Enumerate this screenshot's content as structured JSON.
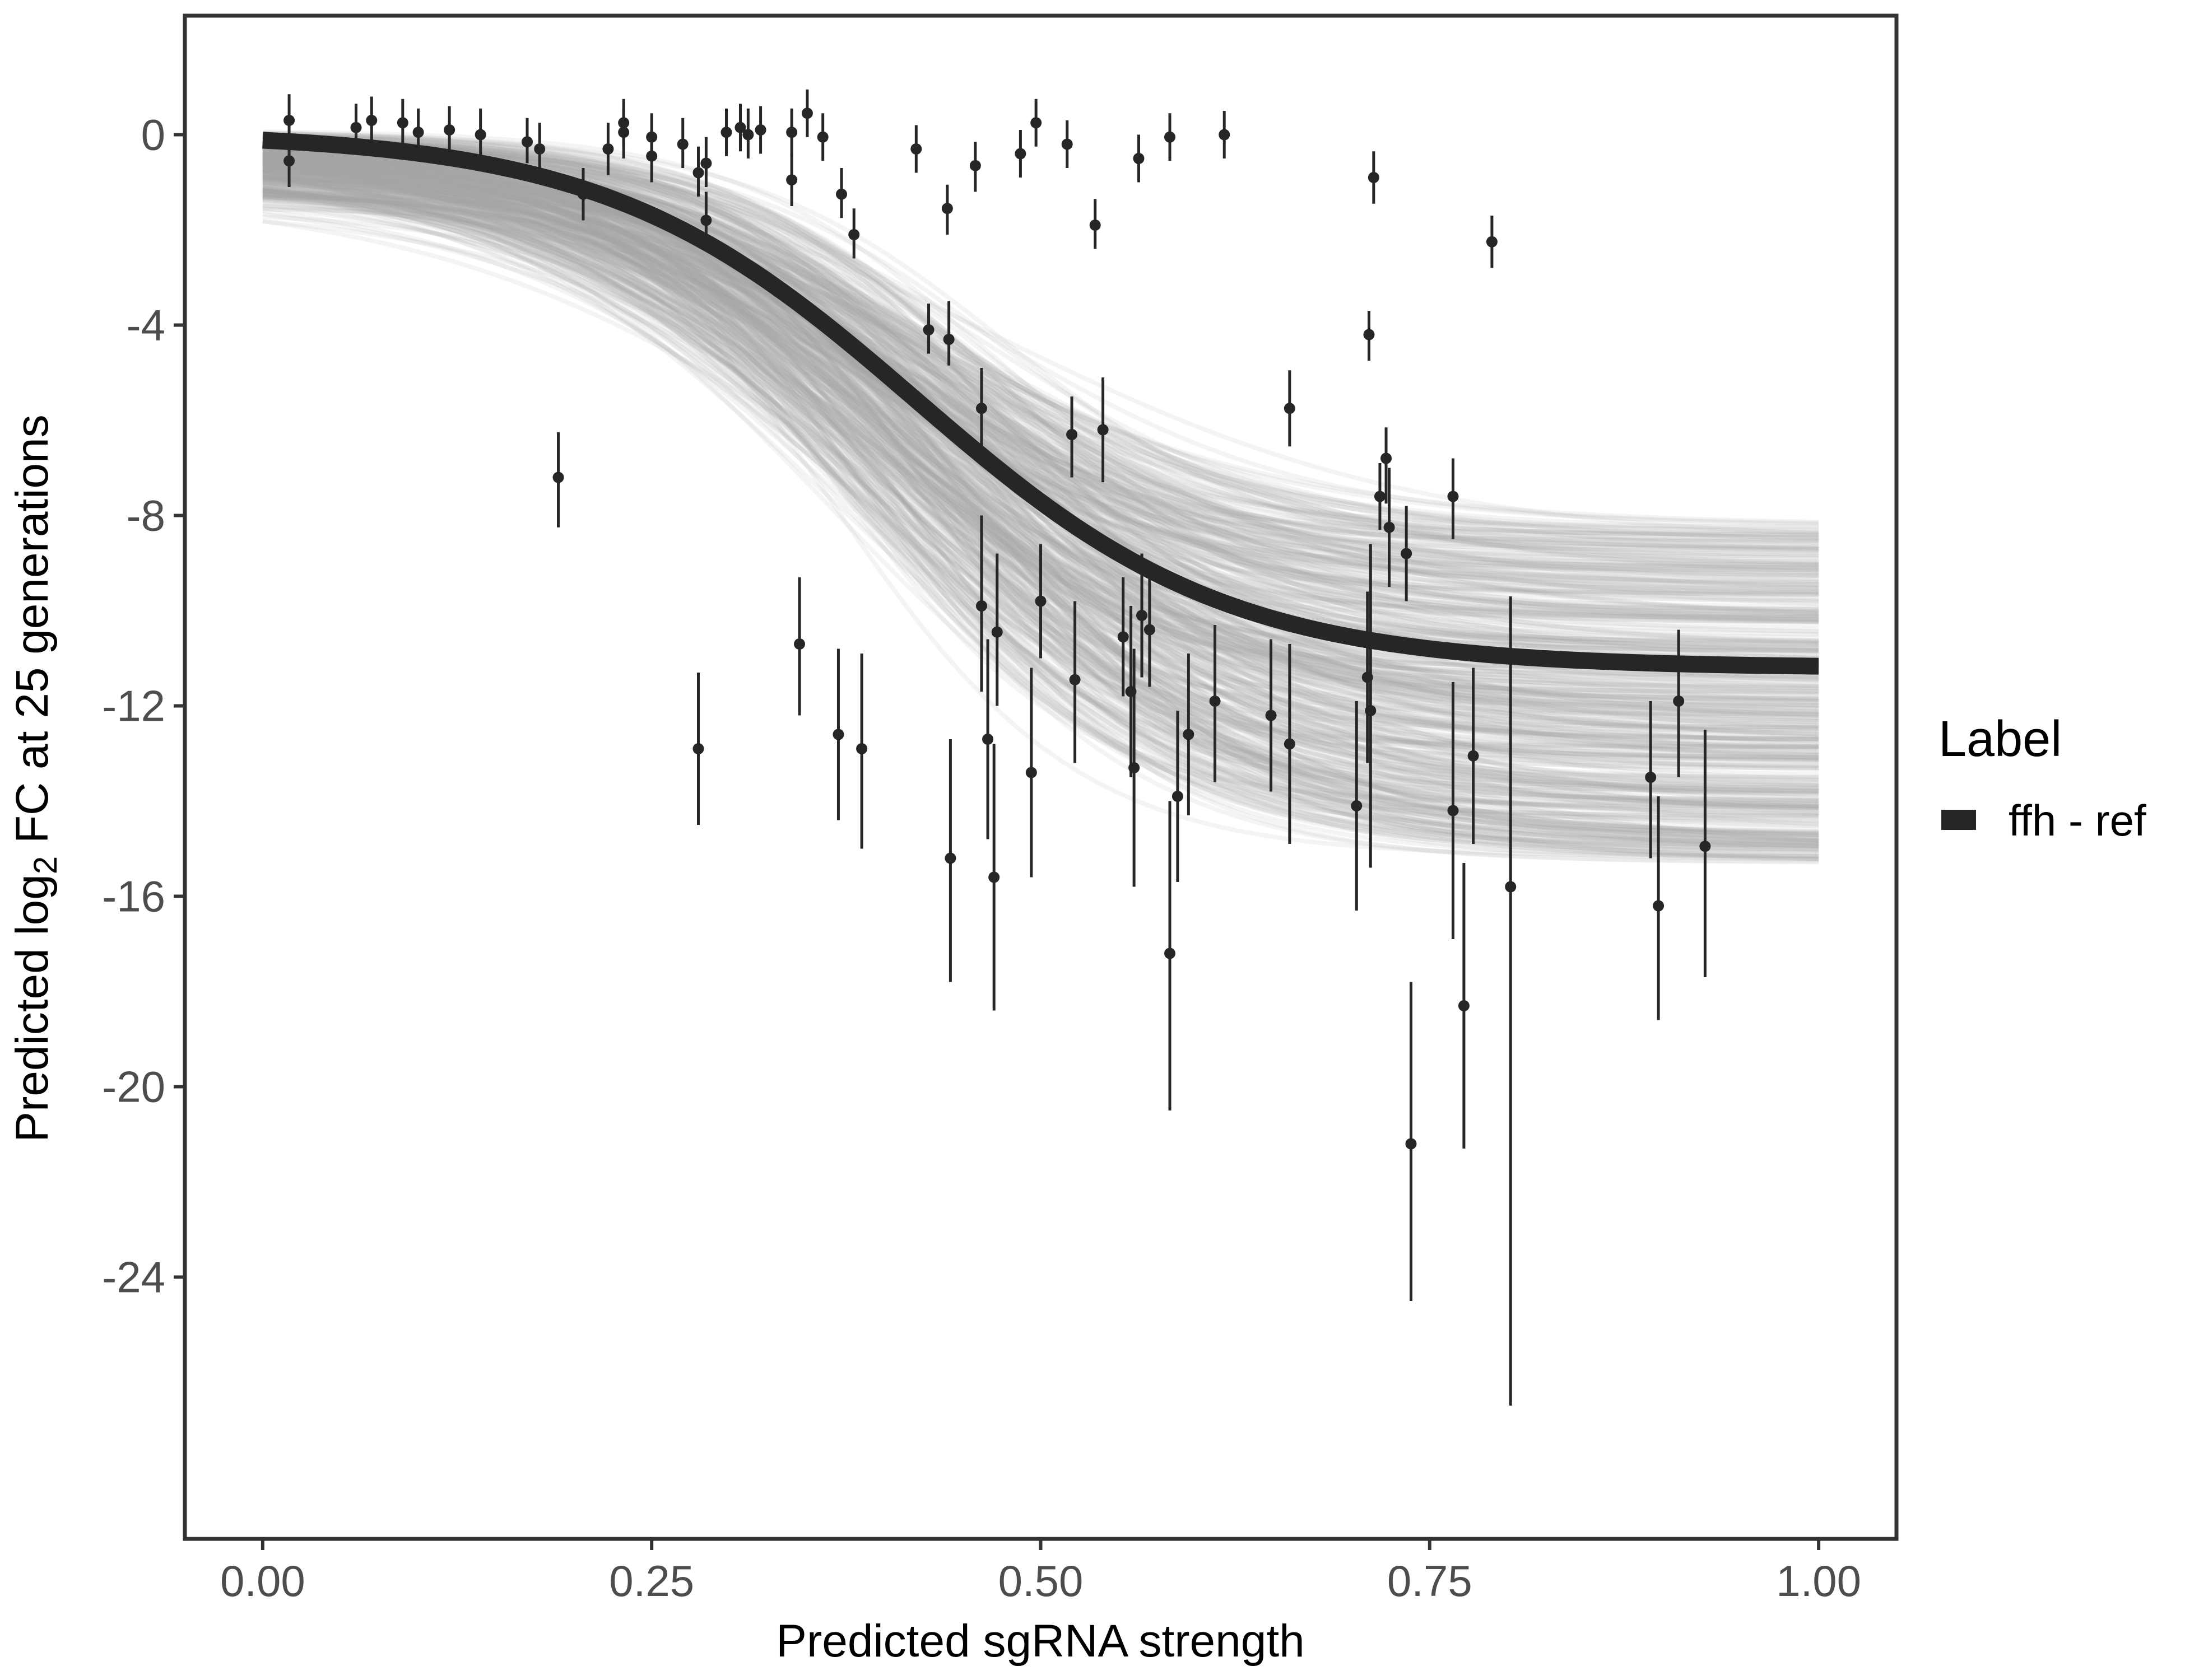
{
  "chart_data": {
    "type": "scatter",
    "xlabel": "Predicted sgRNA strength",
    "ylabel": {
      "prefix": "Predicted  log",
      "subscript": "2",
      "suffix": " FC at 25 generations"
    },
    "xlim": [
      -0.05,
      1.05
    ],
    "ylim": [
      -29.5,
      2.5
    ],
    "x_ticks": [
      0,
      0.25,
      0.5,
      0.75,
      1.0
    ],
    "x_tick_labels": [
      "0.00",
      "0.25",
      "0.50",
      "0.75",
      "1.00"
    ],
    "y_ticks": [
      0,
      -4,
      -8,
      -12,
      -16,
      -20,
      -24
    ],
    "y_tick_labels": [
      "0",
      "-4",
      "-8",
      "-12",
      "-16",
      "-20",
      "-24"
    ],
    "grid": false,
    "legend": {
      "title": "Label",
      "position": "right",
      "items": [
        {
          "label": "ffh - ref",
          "color": "#262626"
        }
      ]
    },
    "fit": {
      "name": "ffh - ref",
      "model": "sigmoid",
      "top": 0.05,
      "bottom": -11.2,
      "midpoint": 0.42,
      "steepness": 10,
      "color": "#262626"
    },
    "posterior_band": {
      "color": "#a6a6a6",
      "top_range": [
        -1.8,
        0.1
      ],
      "bottom_range": [
        -15.3,
        -8.2
      ]
    },
    "points": [
      {
        "x": 0.017,
        "y": 0.3,
        "lo": -0.3,
        "hi": 0.85
      },
      {
        "x": 0.017,
        "y": -0.55,
        "lo": -1.1,
        "hi": 0.0
      },
      {
        "x": 0.06,
        "y": 0.15,
        "lo": -0.35,
        "hi": 0.65
      },
      {
        "x": 0.07,
        "y": 0.3,
        "lo": -0.2,
        "hi": 0.8
      },
      {
        "x": 0.09,
        "y": 0.25,
        "lo": -0.25,
        "hi": 0.75
      },
      {
        "x": 0.1,
        "y": 0.05,
        "lo": -0.45,
        "hi": 0.55
      },
      {
        "x": 0.12,
        "y": 0.1,
        "lo": -0.4,
        "hi": 0.6
      },
      {
        "x": 0.14,
        "y": 0.0,
        "lo": -0.5,
        "hi": 0.55
      },
      {
        "x": 0.17,
        "y": -0.15,
        "lo": -0.6,
        "hi": 0.35
      },
      {
        "x": 0.178,
        "y": -0.3,
        "lo": -0.85,
        "hi": 0.25
      },
      {
        "x": 0.19,
        "y": -7.2,
        "lo": -8.25,
        "hi": -6.25
      },
      {
        "x": 0.206,
        "y": -1.25,
        "lo": -1.8,
        "hi": -0.7
      },
      {
        "x": 0.222,
        "y": -0.3,
        "lo": -0.85,
        "hi": 0.25
      },
      {
        "x": 0.232,
        "y": 0.05,
        "lo": -0.5,
        "hi": 0.55
      },
      {
        "x": 0.232,
        "y": 0.25,
        "lo": -0.25,
        "hi": 0.75
      },
      {
        "x": 0.25,
        "y": -0.45,
        "lo": -1.0,
        "hi": 0.1
      },
      {
        "x": 0.25,
        "y": -0.05,
        "lo": -0.55,
        "hi": 0.45
      },
      {
        "x": 0.27,
        "y": -0.2,
        "lo": -0.7,
        "hi": 0.35
      },
      {
        "x": 0.28,
        "y": -0.8,
        "lo": -1.3,
        "hi": -0.25
      },
      {
        "x": 0.28,
        "y": -12.9,
        "lo": -14.5,
        "hi": -11.3
      },
      {
        "x": 0.285,
        "y": -0.6,
        "lo": -1.1,
        "hi": -0.05
      },
      {
        "x": 0.285,
        "y": -1.8,
        "lo": -2.3,
        "hi": -1.2
      },
      {
        "x": 0.298,
        "y": 0.05,
        "lo": -0.45,
        "hi": 0.55
      },
      {
        "x": 0.307,
        "y": 0.15,
        "lo": -0.35,
        "hi": 0.65
      },
      {
        "x": 0.312,
        "y": 0.0,
        "lo": -0.5,
        "hi": 0.55
      },
      {
        "x": 0.32,
        "y": 0.1,
        "lo": -0.4,
        "hi": 0.6
      },
      {
        "x": 0.34,
        "y": 0.05,
        "lo": -0.45,
        "hi": 0.55
      },
      {
        "x": 0.34,
        "y": -0.95,
        "lo": -1.5,
        "hi": -0.4
      },
      {
        "x": 0.345,
        "y": -10.7,
        "lo": -12.2,
        "hi": -9.3
      },
      {
        "x": 0.35,
        "y": 0.45,
        "lo": -0.05,
        "hi": 0.95
      },
      {
        "x": 0.36,
        "y": -0.05,
        "lo": -0.55,
        "hi": 0.45
      },
      {
        "x": 0.37,
        "y": -12.6,
        "lo": -14.4,
        "hi": -10.8
      },
      {
        "x": 0.372,
        "y": -1.25,
        "lo": -1.75,
        "hi": -0.7
      },
      {
        "x": 0.38,
        "y": -2.1,
        "lo": -2.6,
        "hi": -1.55
      },
      {
        "x": 0.385,
        "y": -12.9,
        "lo": -15.0,
        "hi": -10.9
      },
      {
        "x": 0.42,
        "y": -0.3,
        "lo": -0.8,
        "hi": 0.2
      },
      {
        "x": 0.428,
        "y": -4.1,
        "lo": -4.6,
        "hi": -3.55
      },
      {
        "x": 0.44,
        "y": -1.55,
        "lo": -2.1,
        "hi": -1.05
      },
      {
        "x": 0.441,
        "y": -4.3,
        "lo": -4.85,
        "hi": -3.5
      },
      {
        "x": 0.442,
        "y": -15.2,
        "lo": -17.8,
        "hi": -12.7
      },
      {
        "x": 0.458,
        "y": -0.65,
        "lo": -1.2,
        "hi": -0.15
      },
      {
        "x": 0.462,
        "y": -5.75,
        "lo": -6.6,
        "hi": -4.9
      },
      {
        "x": 0.462,
        "y": -9.9,
        "lo": -11.7,
        "hi": -8.0
      },
      {
        "x": 0.466,
        "y": -12.7,
        "lo": -14.8,
        "hi": -10.6
      },
      {
        "x": 0.47,
        "y": -15.6,
        "lo": -18.4,
        "hi": -12.8
      },
      {
        "x": 0.472,
        "y": -10.45,
        "lo": -12.0,
        "hi": -8.8
      },
      {
        "x": 0.487,
        "y": -0.4,
        "lo": -0.9,
        "hi": 0.1
      },
      {
        "x": 0.494,
        "y": -13.4,
        "lo": -15.6,
        "hi": -11.2
      },
      {
        "x": 0.497,
        "y": 0.25,
        "lo": -0.25,
        "hi": 0.75
      },
      {
        "x": 0.5,
        "y": -9.8,
        "lo": -11.0,
        "hi": -8.6
      },
      {
        "x": 0.517,
        "y": -0.2,
        "lo": -0.7,
        "hi": 0.3
      },
      {
        "x": 0.52,
        "y": -6.3,
        "lo": -7.2,
        "hi": -5.5
      },
      {
        "x": 0.522,
        "y": -11.45,
        "lo": -13.2,
        "hi": -9.8
      },
      {
        "x": 0.535,
        "y": -1.9,
        "lo": -2.4,
        "hi": -1.35
      },
      {
        "x": 0.54,
        "y": -6.2,
        "lo": -7.3,
        "hi": -5.1
      },
      {
        "x": 0.553,
        "y": -10.55,
        "lo": -11.8,
        "hi": -9.3
      },
      {
        "x": 0.558,
        "y": -11.7,
        "lo": -13.5,
        "hi": -9.9
      },
      {
        "x": 0.56,
        "y": -13.3,
        "lo": -15.8,
        "hi": -10.8
      },
      {
        "x": 0.563,
        "y": -0.5,
        "lo": -1.0,
        "hi": 0.0
      },
      {
        "x": 0.565,
        "y": -10.1,
        "lo": -11.4,
        "hi": -8.8
      },
      {
        "x": 0.57,
        "y": -10.4,
        "lo": -11.6,
        "hi": -9.2
      },
      {
        "x": 0.583,
        "y": -0.05,
        "lo": -0.55,
        "hi": 0.45
      },
      {
        "x": 0.583,
        "y": -17.2,
        "lo": -20.5,
        "hi": -14.0
      },
      {
        "x": 0.588,
        "y": -13.9,
        "lo": -15.7,
        "hi": -12.1
      },
      {
        "x": 0.595,
        "y": -12.6,
        "lo": -14.3,
        "hi": -10.9
      },
      {
        "x": 0.612,
        "y": -11.9,
        "lo": -13.6,
        "hi": -10.3
      },
      {
        "x": 0.618,
        "y": 0.0,
        "lo": -0.5,
        "hi": 0.5
      },
      {
        "x": 0.648,
        "y": -12.2,
        "lo": -13.8,
        "hi": -10.6
      },
      {
        "x": 0.66,
        "y": -5.75,
        "lo": -6.55,
        "hi": -4.95
      },
      {
        "x": 0.66,
        "y": -12.8,
        "lo": -14.9,
        "hi": -10.7
      },
      {
        "x": 0.703,
        "y": -14.1,
        "lo": -16.3,
        "hi": -11.9
      },
      {
        "x": 0.71,
        "y": -11.4,
        "lo": -13.2,
        "hi": -9.6
      },
      {
        "x": 0.711,
        "y": -4.2,
        "lo": -4.75,
        "hi": -3.7
      },
      {
        "x": 0.712,
        "y": -12.1,
        "lo": -15.4,
        "hi": -8.6
      },
      {
        "x": 0.714,
        "y": -0.9,
        "lo": -1.45,
        "hi": -0.35
      },
      {
        "x": 0.718,
        "y": -7.6,
        "lo": -8.3,
        "hi": -6.9
      },
      {
        "x": 0.722,
        "y": -6.8,
        "lo": -7.75,
        "hi": -6.15
      },
      {
        "x": 0.724,
        "y": -8.25,
        "lo": -9.5,
        "hi": -7.0
      },
      {
        "x": 0.735,
        "y": -8.8,
        "lo": -9.8,
        "hi": -7.8
      },
      {
        "x": 0.738,
        "y": -21.2,
        "lo": -24.5,
        "hi": -17.8
      },
      {
        "x": 0.765,
        "y": -7.6,
        "lo": -8.5,
        "hi": -6.8
      },
      {
        "x": 0.765,
        "y": -14.2,
        "lo": -16.9,
        "hi": -11.5
      },
      {
        "x": 0.772,
        "y": -18.3,
        "lo": -21.3,
        "hi": -15.3
      },
      {
        "x": 0.778,
        "y": -13.05,
        "lo": -14.9,
        "hi": -11.2
      },
      {
        "x": 0.79,
        "y": -2.25,
        "lo": -2.8,
        "hi": -1.7
      },
      {
        "x": 0.802,
        "y": -15.8,
        "lo": -26.7,
        "hi": -9.7
      },
      {
        "x": 0.892,
        "y": -13.5,
        "lo": -15.2,
        "hi": -11.9
      },
      {
        "x": 0.897,
        "y": -16.2,
        "lo": -18.6,
        "hi": -13.9
      },
      {
        "x": 0.91,
        "y": -11.9,
        "lo": -13.5,
        "hi": -10.4
      },
      {
        "x": 0.927,
        "y": -14.95,
        "lo": -17.7,
        "hi": -12.5
      }
    ]
  }
}
